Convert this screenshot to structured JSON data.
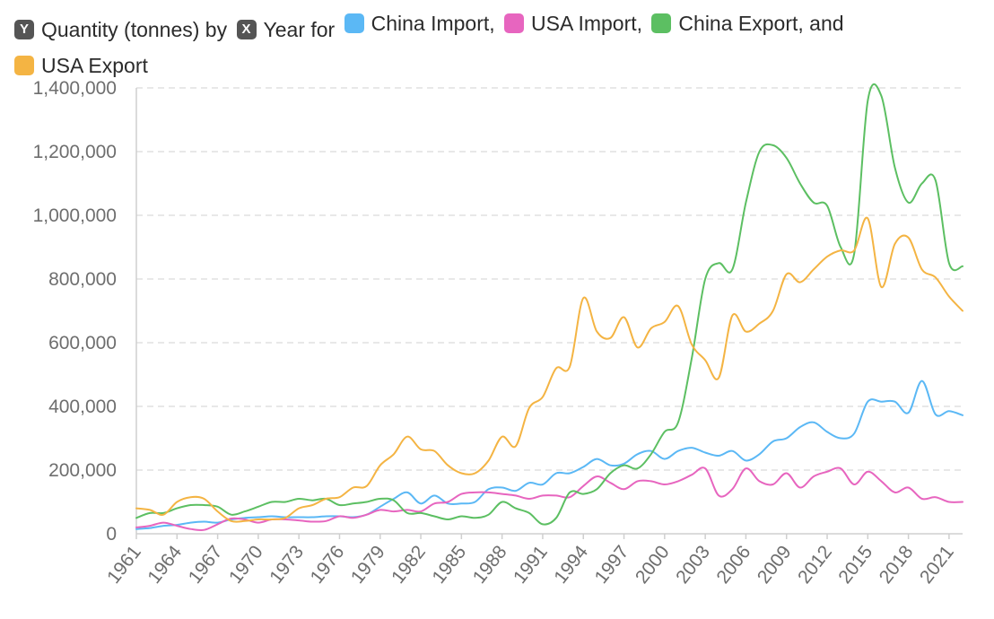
{
  "legend": {
    "y_key": "Y",
    "y_text": "Quantity (tonnes) by",
    "x_key": "X",
    "x_text": "Year for",
    "items": [
      {
        "label": "China Import,",
        "color": "#5bb8f5"
      },
      {
        "label": "USA Import,",
        "color": "#e765bf"
      },
      {
        "label": "China Export, and",
        "color": "#5cbf62"
      },
      {
        "label": "USA Export",
        "color": "#f4b443"
      }
    ]
  },
  "colors": {
    "key_box": "#555555",
    "grid": "#d9d9d9",
    "tick_text": "#6e6e6e"
  },
  "chart_data": {
    "type": "line",
    "xlabel": "Year",
    "ylabel": "Quantity (tonnes)",
    "ylim": [
      0,
      1400000
    ],
    "y_ticks": [
      "0",
      "200,000",
      "400,000",
      "600,000",
      "800,000",
      "1,000,000",
      "1,200,000",
      "1,400,000"
    ],
    "x_ticks": [
      "1961",
      "1964",
      "1967",
      "1970",
      "1973",
      "1976",
      "1979",
      "1982",
      "1985",
      "1988",
      "1991",
      "1994",
      "1997",
      "2000",
      "2003",
      "2006",
      "2009",
      "2012",
      "2015",
      "2018",
      "2021"
    ],
    "grid": true,
    "x": [
      1961,
      1962,
      1963,
      1964,
      1965,
      1966,
      1967,
      1968,
      1969,
      1970,
      1971,
      1972,
      1973,
      1974,
      1975,
      1976,
      1977,
      1978,
      1979,
      1980,
      1981,
      1982,
      1983,
      1984,
      1985,
      1986,
      1987,
      1988,
      1989,
      1990,
      1991,
      1992,
      1993,
      1994,
      1995,
      1996,
      1997,
      1998,
      1999,
      2000,
      2001,
      2002,
      2003,
      2004,
      2005,
      2006,
      2007,
      2008,
      2009,
      2010,
      2011,
      2012,
      2013,
      2014,
      2015,
      2016,
      2017,
      2018,
      2019,
      2020,
      2021,
      2022
    ],
    "series": [
      {
        "name": "China Import",
        "color": "#5bb8f5",
        "values": [
          15000,
          18000,
          25000,
          28000,
          35000,
          38000,
          35000,
          45000,
          50000,
          52000,
          55000,
          52000,
          52000,
          52000,
          55000,
          55000,
          52000,
          60000,
          85000,
          110000,
          130000,
          95000,
          120000,
          95000,
          95000,
          100000,
          140000,
          145000,
          135000,
          160000,
          155000,
          190000,
          190000,
          210000,
          235000,
          215000,
          220000,
          250000,
          260000,
          235000,
          260000,
          270000,
          255000,
          245000,
          260000,
          230000,
          250000,
          290000,
          300000,
          335000,
          350000,
          320000,
          300000,
          315000,
          415000,
          415000,
          415000,
          380000,
          480000,
          375000,
          385000,
          372000
        ]
      },
      {
        "name": "USA Import",
        "color": "#e765bf",
        "values": [
          20000,
          25000,
          35000,
          25000,
          15000,
          12000,
          30000,
          48000,
          45000,
          35000,
          45000,
          45000,
          42000,
          38000,
          40000,
          55000,
          50000,
          60000,
          75000,
          70000,
          75000,
          70000,
          95000,
          100000,
          125000,
          130000,
          130000,
          125000,
          120000,
          110000,
          120000,
          120000,
          115000,
          150000,
          180000,
          160000,
          140000,
          165000,
          165000,
          155000,
          165000,
          185000,
          205000,
          120000,
          140000,
          205000,
          165000,
          155000,
          190000,
          145000,
          180000,
          195000,
          205000,
          155000,
          195000,
          165000,
          130000,
          145000,
          110000,
          115000,
          100000,
          100000
        ]
      },
      {
        "name": "China Export",
        "color": "#5cbf62",
        "values": [
          50000,
          65000,
          65000,
          80000,
          90000,
          90000,
          85000,
          60000,
          70000,
          85000,
          100000,
          100000,
          110000,
          105000,
          110000,
          90000,
          95000,
          100000,
          110000,
          105000,
          65000,
          65000,
          55000,
          45000,
          55000,
          50000,
          60000,
          100000,
          80000,
          65000,
          30000,
          50000,
          130000,
          125000,
          140000,
          190000,
          215000,
          205000,
          250000,
          320000,
          350000,
          550000,
          800000,
          850000,
          830000,
          1040000,
          1200000,
          1220000,
          1180000,
          1100000,
          1040000,
          1030000,
          900000,
          880000,
          1360000,
          1375000,
          1150000,
          1040000,
          1100000,
          1110000,
          850000,
          840000
        ]
      },
      {
        "name": "USA Export",
        "color": "#f4b443",
        "values": [
          80000,
          75000,
          60000,
          100000,
          115000,
          110000,
          70000,
          40000,
          40000,
          45000,
          45000,
          50000,
          80000,
          90000,
          110000,
          115000,
          145000,
          150000,
          215000,
          250000,
          305000,
          265000,
          260000,
          215000,
          190000,
          190000,
          230000,
          305000,
          275000,
          395000,
          430000,
          520000,
          525000,
          740000,
          635000,
          615000,
          680000,
          585000,
          645000,
          665000,
          715000,
          595000,
          545000,
          490000,
          685000,
          635000,
          660000,
          700000,
          815000,
          790000,
          830000,
          870000,
          890000,
          890000,
          990000,
          775000,
          910000,
          930000,
          830000,
          805000,
          745000,
          700000
        ]
      }
    ]
  }
}
